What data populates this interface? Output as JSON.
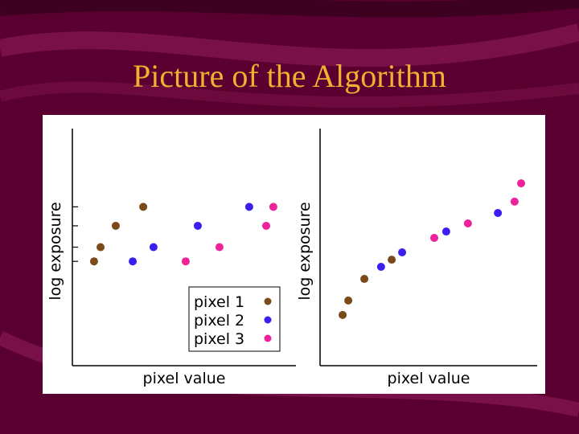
{
  "title": "Picture of the Algorithm",
  "chart_data": [
    {
      "type": "scatter",
      "xlabel": "pixel value",
      "ylabel": "log exposure",
      "xlim": [
        0,
        100
      ],
      "ylim": [
        0,
        100
      ],
      "yticks": [
        44,
        50,
        59,
        67
      ],
      "legend": "lower-right",
      "series": [
        {
          "name": "pixel 1",
          "color": "#7a4a1a",
          "x": [
            9.7,
            12.6,
            19.4,
            31.7
          ],
          "values": [
            44,
            50,
            59,
            67
          ]
        },
        {
          "name": "pixel 2",
          "color": "#3a1ff0",
          "x": [
            27.0,
            36.3,
            56.1,
            79.1
          ],
          "values": [
            44,
            50,
            59,
            67
          ]
        },
        {
          "name": "pixel 3",
          "color": "#ee2299",
          "x": [
            50.7,
            65.8,
            86.7,
            89.9
          ],
          "values": [
            44,
            50,
            59,
            67
          ]
        }
      ]
    },
    {
      "type": "scatter",
      "xlabel": "pixel value",
      "ylabel": "log exposure",
      "xlim": [
        0,
        100
      ],
      "ylim": [
        0,
        100
      ],
      "series": [
        {
          "color": "#7a4a1a",
          "x": [
            10.4,
            13.0,
            20.4,
            33.0
          ],
          "values": [
            21.4,
            27.5,
            36.6,
            44.7
          ]
        },
        {
          "color": "#3a1ff0",
          "x": [
            28.1,
            37.8,
            58.1,
            81.9
          ],
          "values": [
            41.7,
            47.8,
            56.6,
            64.4
          ]
        },
        {
          "color": "#ee2299",
          "x": [
            52.6,
            68.1,
            89.6,
            92.6
          ],
          "values": [
            53.9,
            60.0,
            69.2,
            76.9
          ]
        }
      ]
    }
  ]
}
